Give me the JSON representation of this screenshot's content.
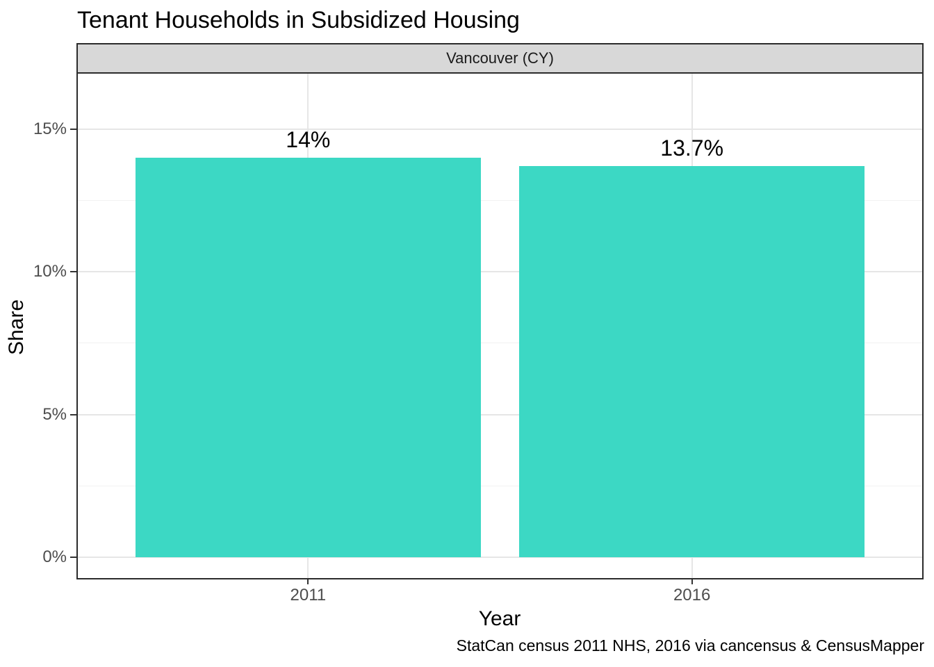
{
  "title": "Tenant Households in Subsidized Housing",
  "facet_label": "Vancouver (CY)",
  "caption": "StatCan census 2011 NHS, 2016 via cancensus & CensusMapper",
  "chart_data": {
    "type": "bar",
    "title": "Tenant Households in Subsidized Housing",
    "facet": "Vancouver (CY)",
    "categories": [
      "2011",
      "2016"
    ],
    "values": [
      14,
      13.7
    ],
    "bar_labels": [
      "14%",
      "13.7%"
    ],
    "xlabel": "Year",
    "ylabel": "Share",
    "y_ticks": [
      0,
      5,
      10,
      15
    ],
    "y_tick_labels": [
      "0%",
      "5%",
      "10%",
      "15%"
    ],
    "y_minor_gridlines": [
      2.5,
      7.5,
      12.5
    ],
    "ylim": [
      -0.8,
      17
    ],
    "y_unit": "percent",
    "grid": "horizontal major + minor, vertical major at category centers",
    "legend": "none",
    "caption": "StatCan census 2011 NHS, 2016 via cancensus & CensusMapper"
  },
  "colors": {
    "bar_fill": "#3CD8C4",
    "strip_background": "#D8D8D8",
    "panel_border": "#2B2B2B",
    "grid_major": "#E6E6E6",
    "grid_minor": "#F2F2F2",
    "axis_text": "#4D4D4D",
    "text": "#000000",
    "background": "#FFFFFF"
  }
}
